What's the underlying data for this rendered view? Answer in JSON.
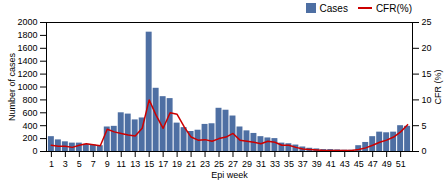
{
  "chart_data": {
    "type": "bar",
    "xlabel": "Epi week",
    "ylabel": "Number of cases",
    "y2label": "CFR (%)",
    "x": [
      1,
      2,
      3,
      4,
      5,
      6,
      7,
      8,
      9,
      10,
      11,
      12,
      13,
      14,
      15,
      16,
      17,
      18,
      19,
      20,
      21,
      22,
      23,
      24,
      25,
      26,
      27,
      28,
      29,
      30,
      31,
      32,
      33,
      34,
      35,
      36,
      37,
      38,
      39,
      40,
      41,
      42,
      43,
      44,
      45,
      46,
      47,
      48,
      49,
      50,
      51,
      52
    ],
    "xlim": [
      0.3,
      52.7
    ],
    "xticks": [
      1,
      3,
      5,
      7,
      9,
      11,
      13,
      15,
      17,
      19,
      21,
      23,
      25,
      27,
      29,
      31,
      33,
      35,
      37,
      39,
      41,
      43,
      45,
      47,
      49,
      51
    ],
    "ylim": [
      0,
      2000
    ],
    "yticks": [
      0,
      200,
      400,
      600,
      800,
      1000,
      1200,
      1400,
      1600,
      1800,
      2000
    ],
    "y2lim": [
      0,
      25
    ],
    "y2ticks": [
      0,
      5,
      10,
      15,
      20,
      25
    ],
    "grid": false,
    "legend": "upper right",
    "series": [
      {
        "name": "Cases",
        "type": "bar",
        "color": "#4E6FA3",
        "values": [
          230,
          180,
          150,
          130,
          130,
          110,
          100,
          90,
          380,
          390,
          600,
          580,
          490,
          520,
          1850,
          980,
          850,
          820,
          440,
          370,
          310,
          330,
          420,
          430,
          670,
          640,
          550,
          380,
          320,
          280,
          230,
          210,
          200,
          130,
          120,
          100,
          70,
          50,
          40,
          30,
          30,
          25,
          20,
          20,
          90,
          140,
          230,
          300,
          290,
          300,
          400,
          390
        ]
      },
      {
        "name": "CFR(%)",
        "type": "line",
        "color": "#CC0000",
        "axis": "y2",
        "values": [
          1.2,
          1.0,
          1.0,
          0.8,
          1.2,
          1.5,
          1.3,
          1.1,
          4.3,
          3.8,
          3.5,
          3.2,
          3.0,
          4.5,
          10.0,
          7.0,
          4.5,
          7.5,
          7.2,
          4.8,
          2.8,
          2.2,
          2.3,
          2.0,
          2.5,
          2.8,
          3.5,
          2.2,
          2.0,
          1.8,
          1.5,
          2.0,
          1.8,
          1.2,
          1.2,
          0.8,
          0.5,
          0.4,
          0.3,
          0.2,
          0.2,
          0.2,
          0.2,
          0.2,
          0.4,
          0.7,
          1.2,
          1.8,
          2.2,
          2.8,
          3.8,
          5.2
        ]
      }
    ]
  }
}
